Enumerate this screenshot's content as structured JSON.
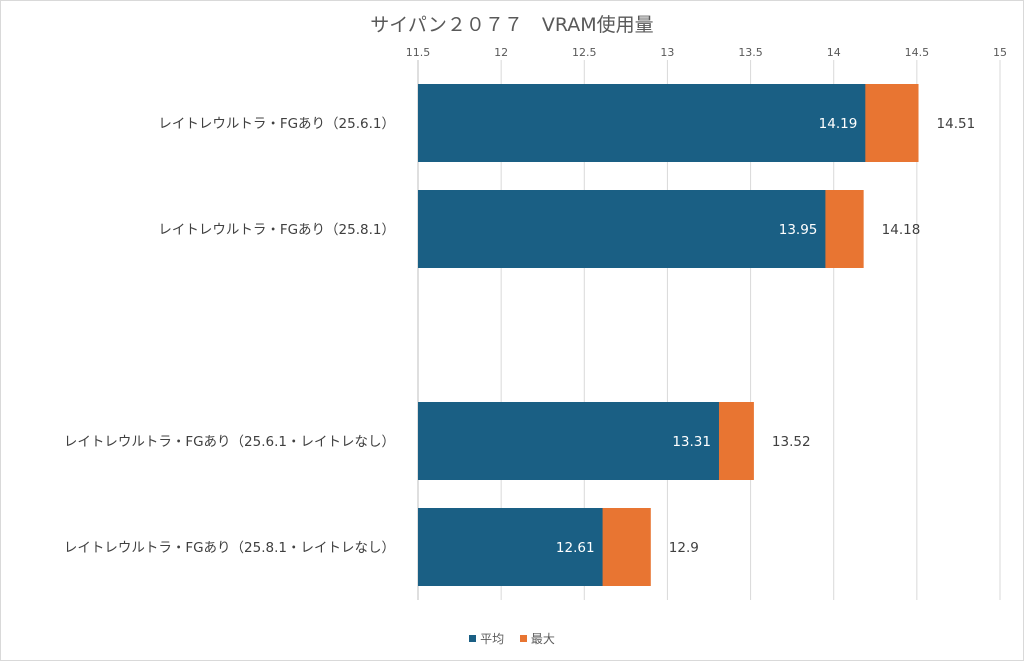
{
  "chart_data": {
    "type": "bar",
    "orientation": "horizontal",
    "stacked_overlay": true,
    "title": "サイパン２０７７　VRAM使用量",
    "xlabel": "",
    "ylabel": "",
    "xlim": [
      11.5,
      15
    ],
    "xticks": [
      11.5,
      12,
      12.5,
      13,
      13.5,
      14,
      14.5,
      15
    ],
    "xtick_labels": [
      "11.5",
      "12",
      "12.5",
      "13",
      "13.5",
      "14",
      "14.5",
      "15"
    ],
    "grid": true,
    "legend_position": "bottom",
    "categories": [
      "レイトレウルトラ・FGあり（25.6.1）",
      "レイトレウルトラ・FGあり（25.8.1）",
      "",
      "レイトレウルトラ・FGあり（25.6.1・レイトレなし）",
      "レイトレウルトラ・FGあり（25.8.1・レイトレなし）"
    ],
    "series": [
      {
        "name": "平均",
        "color": "#1a5f84",
        "values": [
          14.19,
          13.95,
          null,
          13.31,
          12.61
        ],
        "labels": [
          "14.19",
          "13.95",
          "",
          "13.31",
          "12.61"
        ]
      },
      {
        "name": "最大",
        "color": "#e87532",
        "values": [
          14.51,
          14.18,
          null,
          13.52,
          12.9
        ],
        "labels": [
          "14.51",
          "14.18",
          "",
          "13.52",
          "12.9"
        ]
      }
    ]
  }
}
